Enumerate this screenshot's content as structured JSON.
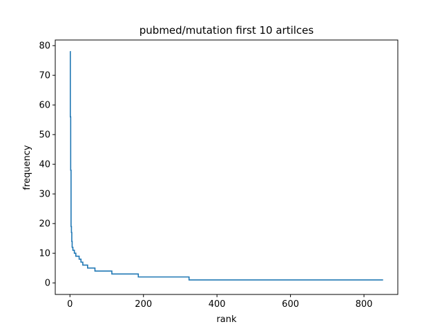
{
  "chart_data": {
    "type": "line",
    "title": "pubmed/mutation first 10 artilces",
    "xlabel": "rank",
    "ylabel": "frequency",
    "xlim": [
      -40,
      892
    ],
    "ylim": [
      -3.9,
      81.9
    ],
    "xticks": [
      0,
      200,
      400,
      600,
      800
    ],
    "yticks": [
      0,
      10,
      20,
      30,
      40,
      50,
      60,
      70,
      80
    ],
    "grid": false,
    "legend": "none",
    "series": [
      {
        "color": "#1f77b4",
        "step_points": [
          [
            0,
            78
          ],
          [
            1,
            56
          ],
          [
            2,
            38
          ],
          [
            3,
            19
          ],
          [
            4,
            17
          ],
          [
            5,
            14
          ],
          [
            6,
            12
          ],
          [
            8,
            11
          ],
          [
            12,
            10
          ],
          [
            16,
            9
          ],
          [
            25,
            8
          ],
          [
            30,
            7
          ],
          [
            35,
            6
          ],
          [
            48,
            5
          ],
          [
            68,
            4
          ],
          [
            114,
            3
          ],
          [
            186,
            2
          ],
          [
            324,
            1
          ],
          [
            852,
            1
          ]
        ]
      }
    ]
  }
}
